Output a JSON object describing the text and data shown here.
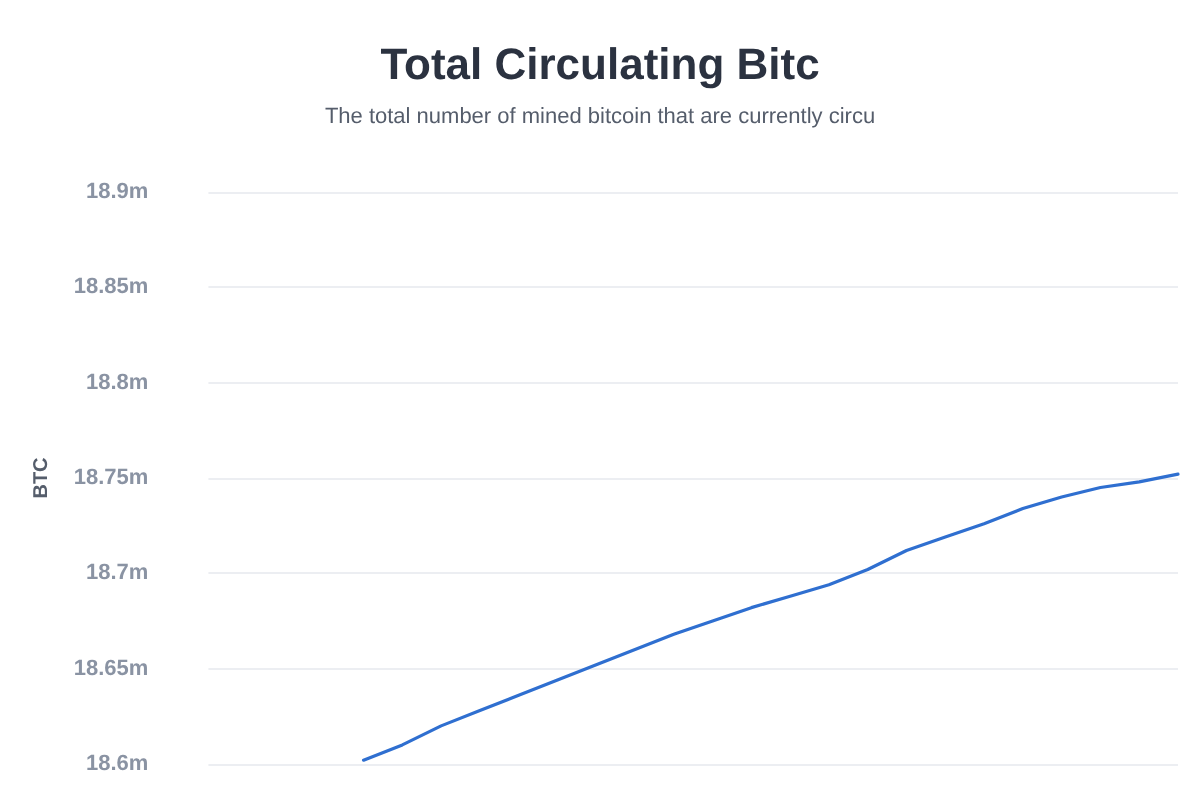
{
  "chart_data": {
    "type": "line",
    "title": "Total Circulating Bitc",
    "subtitle": "The total number of mined bitcoin that are currently circu",
    "ylabel": "BTC",
    "categories": [
      null,
      null,
      null,
      null,
      null,
      null,
      null,
      null,
      null,
      null,
      null,
      null,
      null,
      null,
      null,
      null,
      null,
      null,
      null,
      null,
      null,
      null,
      null,
      null,
      null,
      null
    ],
    "series": [
      {
        "color": "#2f6fd0",
        "values": [
          null,
          null,
          null,
          null,
          18.602,
          18.61,
          18.62,
          18.628,
          18.636,
          18.644,
          18.652,
          18.66,
          18.668,
          18.675,
          18.682,
          18.688,
          18.694,
          18.702,
          18.712,
          18.719,
          18.726,
          18.734,
          18.74,
          18.745,
          18.748,
          18.752
        ]
      }
    ],
    "ylim": [
      18.6,
      18.9
    ],
    "yticks": [
      {
        "value": 18.6,
        "label": "18.6m"
      },
      {
        "value": 18.65,
        "label": "18.65m"
      },
      {
        "value": 18.7,
        "label": "18.7m"
      },
      {
        "value": 18.75,
        "label": "18.75m"
      },
      {
        "value": 18.8,
        "label": "18.8m"
      },
      {
        "value": 18.85,
        "label": "18.85m"
      },
      {
        "value": 18.9,
        "label": "18.9m"
      }
    ],
    "grid": "y",
    "marker": "none",
    "line_style": "solid"
  }
}
